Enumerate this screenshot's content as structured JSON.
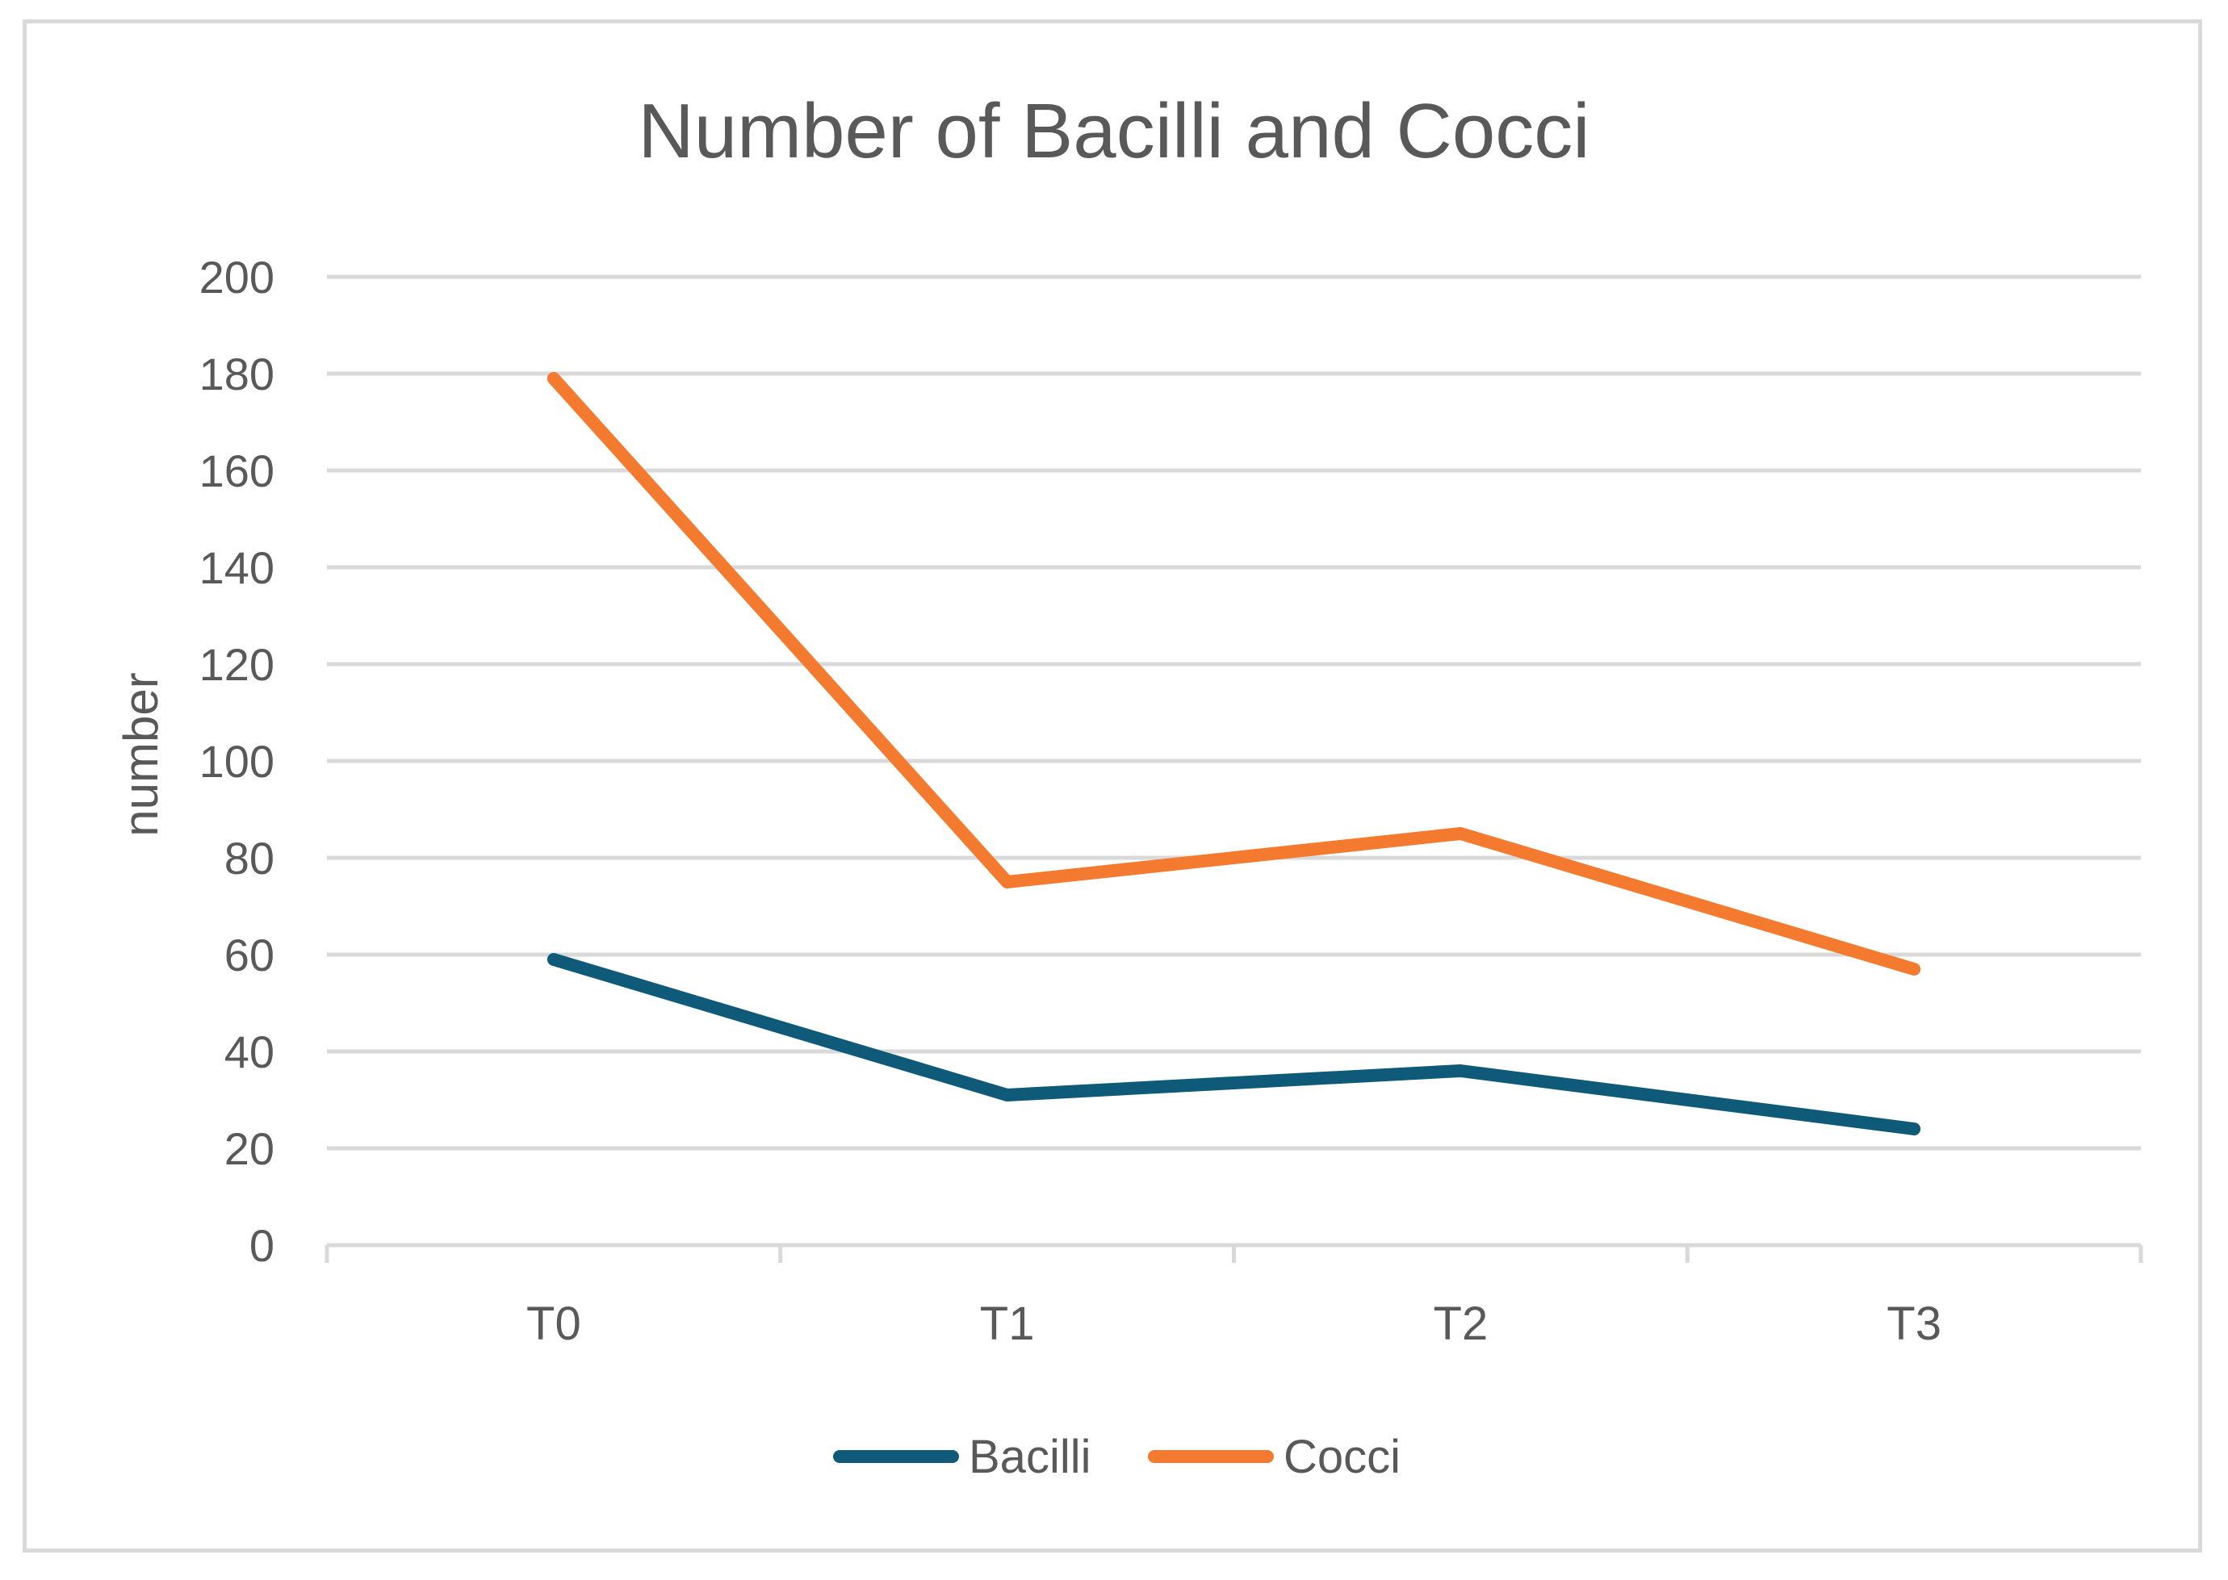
{
  "chart_data": {
    "type": "line",
    "title": "Number of Bacilli and Cocci",
    "xlabel": "",
    "ylabel": "number",
    "categories": [
      "T0",
      "T1",
      "T2",
      "T3"
    ],
    "ylim": [
      0,
      200
    ],
    "yticks": [
      0,
      20,
      40,
      60,
      80,
      100,
      120,
      140,
      160,
      180,
      200
    ],
    "grid": true,
    "legend_position": "bottom",
    "series": [
      {
        "name": "Bacilli",
        "values": [
          59,
          31,
          36,
          24
        ],
        "color": "#0e5a78"
      },
      {
        "name": "Cocci",
        "values": [
          179,
          75,
          85,
          57
        ],
        "color": "#f47a30"
      }
    ]
  }
}
